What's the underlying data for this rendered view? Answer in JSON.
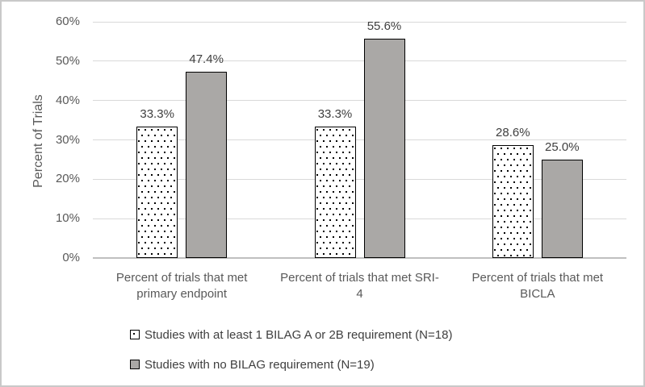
{
  "chart_data": {
    "type": "bar",
    "title": "",
    "ylabel": "Percent of Trials",
    "xlabel": "",
    "ylim": [
      0,
      60
    ],
    "yticks": [
      "0%",
      "10%",
      "20%",
      "30%",
      "40%",
      "50%",
      "60%"
    ],
    "grid": true,
    "legend_position": "bottom-left",
    "categories": [
      "Percent of trials that met primary endpoint",
      "Percent of trials that met SRI-4",
      "Percent of trials that met BICLA"
    ],
    "series": [
      {
        "name": "Studies with at least 1 BILAG A or 2B requirement (N=18)",
        "style": "dots",
        "values": [
          33.3,
          33.3,
          28.6
        ],
        "labels": [
          "33.3%",
          "33.3%",
          "28.6%"
        ]
      },
      {
        "name": "Studies with no BILAG requirement (N=19)",
        "style": "solid",
        "values": [
          47.4,
          55.6,
          25.0
        ],
        "labels": [
          "47.4%",
          "55.6%",
          "25.0%"
        ]
      }
    ],
    "colors": {
      "solid_bar_fill": "#aaa8a6",
      "bar_border": "#000000",
      "gridline": "#d9d9d9",
      "axis_line": "#bfbfbf",
      "tick_text": "#595959",
      "label_text": "#3f3f3f",
      "frame_border": "#c9c9c9"
    }
  }
}
